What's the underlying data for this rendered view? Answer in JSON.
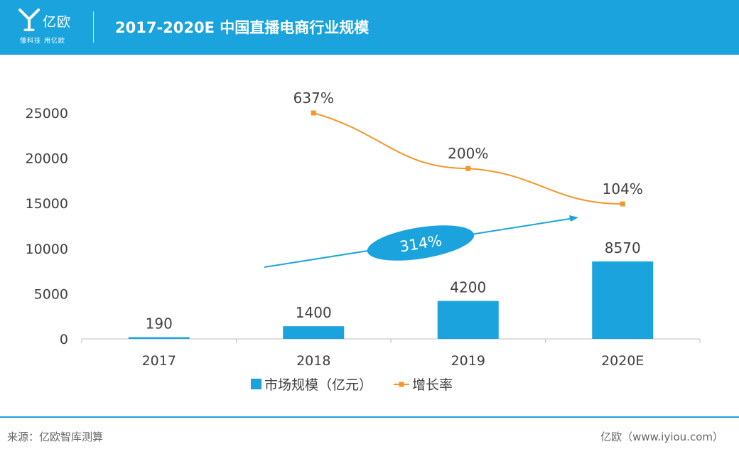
{
  "header": {
    "brand_name": "亿欧",
    "brand_slogan": "懂科技 用亿欧",
    "title": "2017-2020E 中国直播电商行业规模",
    "background_color": "#1aa3dc"
  },
  "chart_data": {
    "type": "bar",
    "categories": [
      "2017",
      "2018",
      "2019",
      "2020E"
    ],
    "series": [
      {
        "name": "市场规模（亿元）",
        "type": "bar",
        "values": [
          190,
          1400,
          4200,
          8570
        ],
        "data_labels": [
          "190",
          "1400",
          "4200",
          "8570"
        ],
        "color": "#1aa3dc"
      },
      {
        "name": "增长率",
        "type": "line",
        "values": [
          null,
          637,
          200,
          104
        ],
        "data_labels": [
          "",
          "637%",
          "200%",
          "104%"
        ],
        "color": "#f5962a"
      }
    ],
    "y_ticks": [
      "25000",
      "20000",
      "15000",
      "10000",
      "5000",
      "0"
    ],
    "ylim": [
      0,
      25000
    ],
    "annotation": {
      "label": "314%",
      "color": "#1aa3dc"
    },
    "legend_position": "bottom",
    "grid": false
  },
  "footer": {
    "source": "来源：亿欧智库测算",
    "credit": "亿欧（www.iyiou.com）"
  }
}
